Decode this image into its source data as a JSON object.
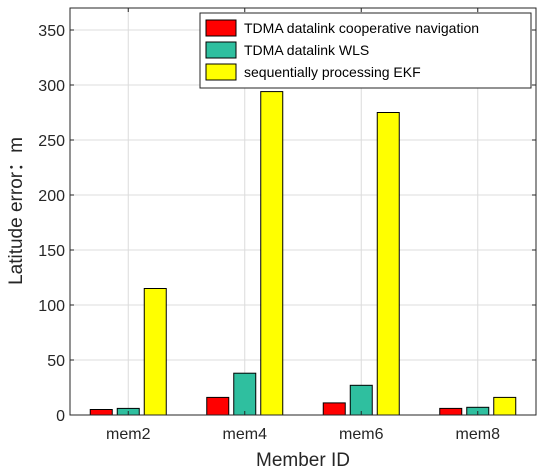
{
  "chart_data": {
    "type": "bar",
    "title": "",
    "xlabel": "Member ID",
    "ylabel": "Latitude error：m",
    "categories": [
      "mem2",
      "mem4",
      "mem6",
      "mem8"
    ],
    "ylim": [
      0,
      370
    ],
    "yticks": [
      0,
      50,
      100,
      150,
      200,
      250,
      300,
      350
    ],
    "grid": true,
    "legend_position": "top-right",
    "series": [
      {
        "name": "TDMA datalink cooperative navigation",
        "color": "#ff0000",
        "values": [
          5,
          16,
          11,
          6
        ]
      },
      {
        "name": "TDMA datalink WLS",
        "color": "#2fbf9f",
        "values": [
          6,
          38,
          27,
          7
        ]
      },
      {
        "name": "sequentially processing EKF",
        "color": "#ffff00",
        "values": [
          115,
          294,
          275,
          16
        ]
      }
    ]
  }
}
